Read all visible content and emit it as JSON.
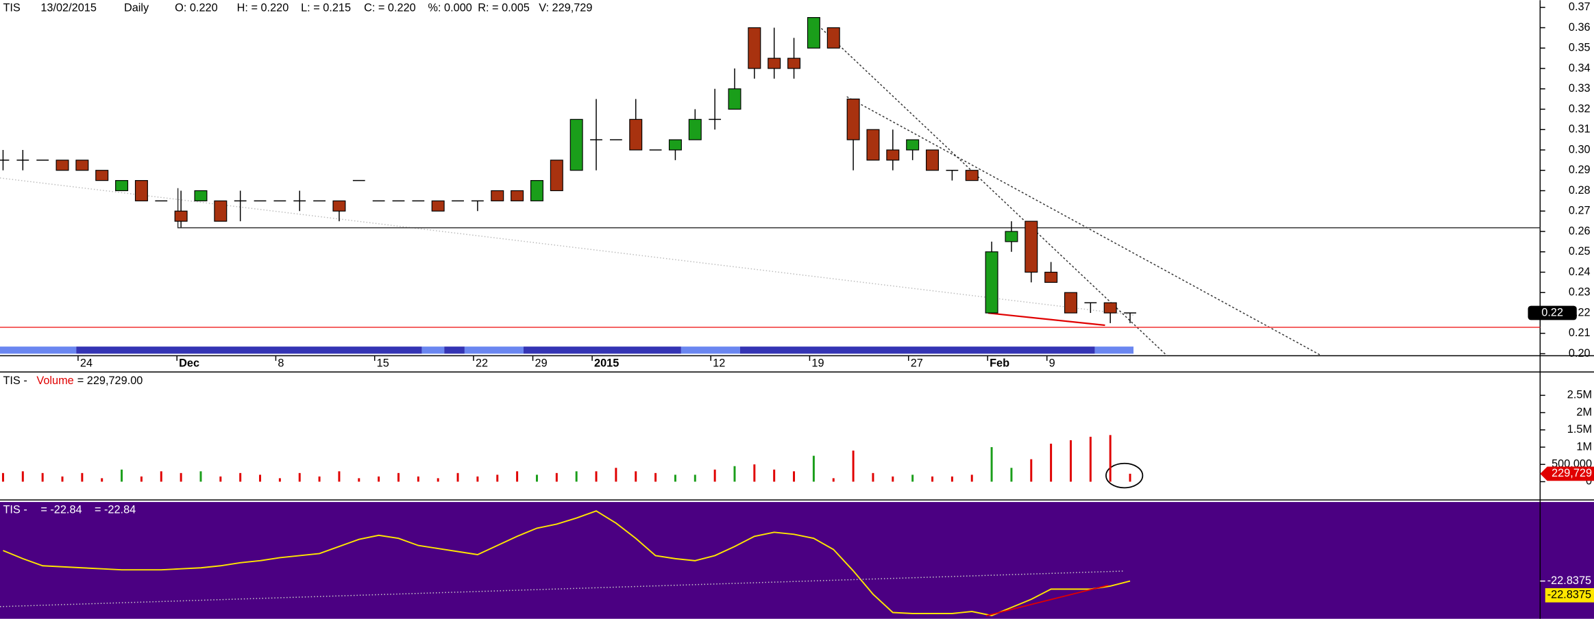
{
  "header": [
    "TIS",
    "13/02/2015",
    "Daily",
    "O: 0.220",
    "H: = 0.220",
    "L: = 0.215",
    "C: = 0.220",
    "%: 0.000",
    "R: = 0.005",
    "V: 229,729"
  ],
  "chart_data": [
    {
      "type": "candlestick",
      "categories": [
        null,
        null,
        null,
        null,
        "24",
        null,
        null,
        null,
        null,
        "Dec",
        null,
        null,
        null,
        null,
        "8",
        null,
        null,
        null,
        null,
        "15",
        null,
        null,
        null,
        null,
        "22",
        null,
        null,
        "29",
        null,
        null,
        "2015",
        null,
        null,
        null,
        null,
        null,
        "12",
        null,
        null,
        null,
        null,
        "19",
        null,
        null,
        null,
        null,
        "27",
        null,
        null,
        null,
        "Feb",
        null,
        null,
        "9",
        null,
        null,
        null,
        null
      ],
      "open": [
        0.295,
        0.295,
        0.295,
        0.295,
        0.295,
        0.29,
        0.28,
        0.285,
        0.275,
        0.27,
        0.275,
        0.275,
        0.275,
        0.275,
        0.275,
        0.275,
        0.275,
        0.275,
        0.285,
        0.275,
        0.275,
        0.275,
        0.275,
        0.275,
        0.275,
        0.28,
        0.28,
        0.275,
        0.295,
        0.29,
        0.305,
        0.305,
        0.315,
        0.3,
        0.3,
        0.305,
        0.315,
        0.32,
        0.36,
        0.345,
        0.345,
        0.35,
        0.36,
        0.325,
        0.31,
        0.3,
        0.3,
        0.3,
        0.29,
        0.29,
        0.22,
        0.255,
        0.265,
        0.24,
        0.23,
        0.225,
        0.225,
        0.22
      ],
      "high": [
        0.3,
        0.3,
        0.295,
        0.295,
        0.295,
        0.29,
        0.285,
        0.285,
        0.275,
        0.28,
        0.28,
        0.275,
        0.28,
        0.275,
        0.275,
        0.28,
        0.275,
        0.275,
        0.285,
        0.275,
        0.275,
        0.275,
        0.275,
        0.275,
        0.275,
        0.28,
        0.28,
        0.285,
        0.295,
        0.315,
        0.325,
        0.305,
        0.325,
        0.3,
        0.305,
        0.32,
        0.33,
        0.34,
        0.36,
        0.36,
        0.355,
        0.365,
        0.36,
        0.325,
        0.31,
        0.31,
        0.305,
        0.3,
        0.29,
        0.29,
        0.255,
        0.265,
        0.265,
        0.245,
        0.23,
        0.225,
        0.225,
        0.22
      ],
      "low": [
        0.29,
        0.29,
        0.295,
        0.29,
        0.29,
        0.285,
        0.28,
        0.275,
        0.275,
        0.262,
        0.275,
        0.265,
        0.265,
        0.275,
        0.275,
        0.27,
        0.275,
        0.265,
        0.285,
        0.275,
        0.275,
        0.275,
        0.27,
        0.275,
        0.27,
        0.275,
        0.275,
        0.275,
        0.28,
        0.29,
        0.29,
        0.305,
        0.3,
        0.3,
        0.295,
        0.305,
        0.31,
        0.32,
        0.335,
        0.335,
        0.335,
        0.35,
        0.35,
        0.29,
        0.295,
        0.29,
        0.295,
        0.29,
        0.285,
        0.285,
        0.22,
        0.25,
        0.235,
        0.235,
        0.22,
        0.22,
        0.215,
        0.215
      ],
      "close": [
        0.295,
        0.295,
        0.295,
        0.29,
        0.29,
        0.285,
        0.285,
        0.275,
        0.275,
        0.265,
        0.28,
        0.265,
        0.275,
        0.275,
        0.275,
        0.275,
        0.275,
        0.27,
        0.285,
        0.275,
        0.275,
        0.275,
        0.27,
        0.275,
        0.275,
        0.275,
        0.275,
        0.285,
        0.28,
        0.315,
        0.305,
        0.305,
        0.3,
        0.3,
        0.305,
        0.315,
        0.315,
        0.33,
        0.34,
        0.34,
        0.34,
        0.365,
        0.35,
        0.305,
        0.295,
        0.295,
        0.305,
        0.29,
        0.29,
        0.285,
        0.25,
        0.26,
        0.24,
        0.235,
        0.22,
        0.225,
        0.22,
        0.22
      ],
      "up_color": "#1a9e1a",
      "down_color": "#a8320f",
      "ylim": [
        0.199,
        0.3735
      ],
      "yticks": [
        {
          "value": 0.2,
          "label": "0.20"
        },
        0.21,
        0.22,
        0.23,
        0.24,
        0.25,
        0.26,
        0.27,
        0.28,
        0.29,
        {
          "value": 0.3,
          "label": "0.30"
        },
        0.31,
        0.32,
        0.33,
        0.34,
        0.35,
        0.36,
        0.37
      ],
      "price_tag": {
        "value": 0.22,
        "label": "0.22"
      }
    },
    {
      "type": "volume",
      "title": [
        "TIS -",
        "Volume",
        "= 229,729.00"
      ],
      "values": [
        250000,
        300000,
        250000,
        150000,
        250000,
        100000,
        350000,
        150000,
        300000,
        250000,
        300000,
        150000,
        250000,
        200000,
        100000,
        250000,
        150000,
        300000,
        100000,
        150000,
        250000,
        150000,
        100000,
        250000,
        150000,
        200000,
        300000,
        200000,
        250000,
        300000,
        300000,
        400000,
        300000,
        250000,
        200000,
        200000,
        350000,
        450000,
        500000,
        350000,
        300000,
        750000,
        100000,
        900000,
        250000,
        150000,
        200000,
        150000,
        150000,
        200000,
        1000000,
        400000,
        650000,
        1100000,
        1200000,
        1300000,
        1350000,
        229729
      ],
      "up_color": "#1a9e1a",
      "down_color": "#e00000",
      "ylim": [
        0,
        2750000
      ],
      "yticks": [
        0,
        {
          "value": 500000,
          "label": "500,000"
        },
        {
          "value": 1000000,
          "label": "1M"
        },
        {
          "value": 1500000,
          "label": "1.5M"
        },
        {
          "value": 2000000,
          "label": "2M"
        },
        {
          "value": 2500000,
          "label": "2.5M"
        }
      ],
      "last_tag": {
        "value": 229729,
        "label": "229,729"
      }
    },
    {
      "type": "line",
      "title": [
        "TIS -",
        "= -22.84",
        "= -22.84"
      ],
      "series": [
        {
          "color": "#ffe600",
          "values": [
            7.2,
            -0.8,
            -7.8,
            -8.8,
            -9.8,
            -10.8,
            -11.8,
            -11.8,
            -11.8,
            -10.8,
            -9.8,
            -7.8,
            -4.8,
            -2.8,
            0.2,
            2.2,
            4.2,
            11.2,
            18.2,
            22.2,
            19.2,
            12.2,
            9.2,
            6.2,
            3.2,
            12.2,
            21.2,
            29.2,
            33.2,
            39.2,
            46.2,
            34.2,
            19.2,
            2.2,
            -0.8,
            -2.8,
            2.2,
            11.2,
            21.2,
            25.2,
            23.2,
            19.2,
            8.2,
            -12.8,
            -35.8,
            -53.8,
            -54.8,
            -54.8,
            -54.8,
            -52.8,
            -56.8,
            -48.8,
            -40.8,
            -30.8,
            -30.8,
            -30.8,
            -27.8,
            -22.8375
          ]
        }
      ],
      "background": "#4b0082",
      "ylim": [
        -60,
        54
      ],
      "yticks": [
        {
          "value": -22.8375,
          "label": "-22.8375"
        }
      ],
      "last_tag": {
        "value": -22.8375,
        "label": "-22.8375"
      }
    }
  ]
}
